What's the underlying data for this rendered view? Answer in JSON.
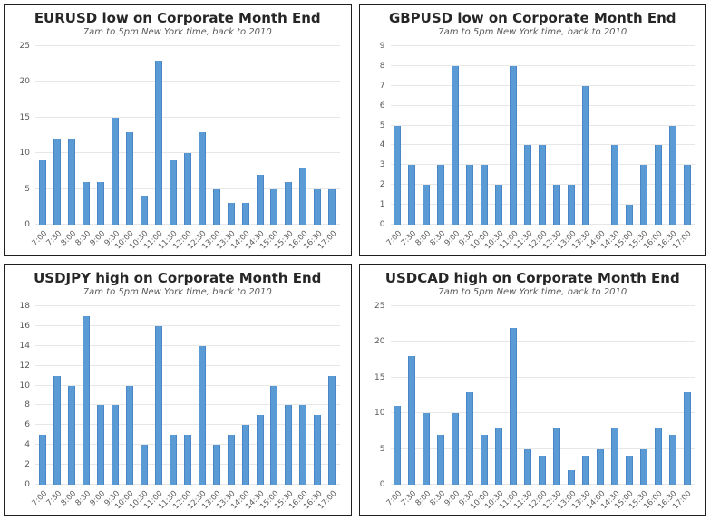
{
  "page": {
    "background_color": "#ffffff",
    "panel_border_color": "#1f1f1f",
    "grid_color": "#e7e7e7",
    "title_color": "#262626",
    "axis_text_color": "#595959"
  },
  "chart_data": [
    {
      "id": "eurusd-low",
      "type": "bar",
      "title": "EURUSD low on Corporate Month End",
      "subtitle": "7am to 5pm New York time, back to 2010",
      "categories": [
        "7:00",
        "7:30",
        "8:00",
        "8:30",
        "9:00",
        "9:30",
        "10:00",
        "10:30",
        "11:00",
        "11:30",
        "12:00",
        "12:30",
        "13:00",
        "13:30",
        "14:00",
        "14:30",
        "15:00",
        "15:30",
        "16:00",
        "16:30",
        "17:00"
      ],
      "values": [
        9,
        12,
        12,
        6,
        6,
        15,
        13,
        4,
        23,
        9,
        10,
        13,
        5,
        3,
        3,
        7,
        5,
        6,
        8,
        5,
        5
      ],
      "xlabel": "",
      "ylabel": "",
      "ylim": [
        0,
        25
      ],
      "ytick_step": 5,
      "yticks": [
        0,
        5,
        10,
        15,
        20,
        25
      ],
      "grid": true,
      "legend": "none",
      "bar_color": "#5b9bd5",
      "bar_edge_color": "#4a86c5"
    },
    {
      "id": "gbpusd-low",
      "type": "bar",
      "title": "GBPUSD low on Corporate Month End",
      "subtitle": "7am to 5pm New York time, back to 2010",
      "categories": [
        "7:00",
        "7:30",
        "8:00",
        "8:30",
        "9:00",
        "9:30",
        "10:00",
        "10:30",
        "11:00",
        "11:30",
        "12:00",
        "12:30",
        "13:00",
        "13:30",
        "14:00",
        "14:30",
        "15:00",
        "15:30",
        "16:00",
        "16:30",
        "17:00"
      ],
      "values": [
        5,
        3,
        2,
        3,
        8,
        3,
        3,
        2,
        8,
        4,
        4,
        2,
        2,
        7,
        0,
        4,
        1,
        3,
        4,
        5,
        3
      ],
      "xlabel": "",
      "ylabel": "",
      "ylim": [
        0,
        9
      ],
      "ytick_step": 1,
      "yticks": [
        0,
        1,
        2,
        3,
        4,
        5,
        6,
        7,
        8,
        9
      ],
      "grid": true,
      "legend": "none",
      "bar_color": "#5b9bd5",
      "bar_edge_color": "#4a86c5"
    },
    {
      "id": "usdjpy-high",
      "type": "bar",
      "title": "USDJPY high on Corporate Month End",
      "subtitle": "7am to 5pm New York time, back to 2010",
      "categories": [
        "7:00",
        "7:30",
        "8:00",
        "8:30",
        "9:00",
        "9:30",
        "10:00",
        "10:30",
        "11:00",
        "11:30",
        "12:00",
        "12:30",
        "13:00",
        "13:30",
        "14:00",
        "14:30",
        "15:00",
        "15:30",
        "16:00",
        "16:30",
        "17:00"
      ],
      "values": [
        5,
        11,
        10,
        17,
        8,
        8,
        10,
        4,
        16,
        5,
        5,
        14,
        4,
        5,
        6,
        7,
        10,
        8,
        8,
        7,
        11
      ],
      "xlabel": "",
      "ylabel": "",
      "ylim": [
        0,
        18
      ],
      "ytick_step": 2,
      "yticks": [
        0,
        2,
        4,
        6,
        8,
        10,
        12,
        14,
        16,
        18
      ],
      "grid": true,
      "legend": "none",
      "bar_color": "#5b9bd5",
      "bar_edge_color": "#4a86c5"
    },
    {
      "id": "usdcad-high",
      "type": "bar",
      "title": "USDCAD high on Corporate Month End",
      "subtitle": "7am to 5pm New York time, back to 2010",
      "categories": [
        "7:00",
        "7:30",
        "8:00",
        "8:30",
        "9:00",
        "9:30",
        "10:00",
        "10:30",
        "11:00",
        "11:30",
        "12:00",
        "12:30",
        "13:00",
        "13:30",
        "14:00",
        "14:30",
        "15:00",
        "15:30",
        "16:00",
        "16:30",
        "17:00"
      ],
      "values": [
        11,
        18,
        10,
        7,
        10,
        13,
        7,
        8,
        22,
        5,
        4,
        8,
        2,
        4,
        5,
        8,
        4,
        5,
        8,
        7,
        13
      ],
      "xlabel": "",
      "ylabel": "",
      "ylim": [
        0,
        25
      ],
      "ytick_step": 5,
      "yticks": [
        0,
        5,
        10,
        15,
        20,
        25
      ],
      "grid": true,
      "legend": "none",
      "bar_color": "#5b9bd5",
      "bar_edge_color": "#4a86c5"
    }
  ]
}
